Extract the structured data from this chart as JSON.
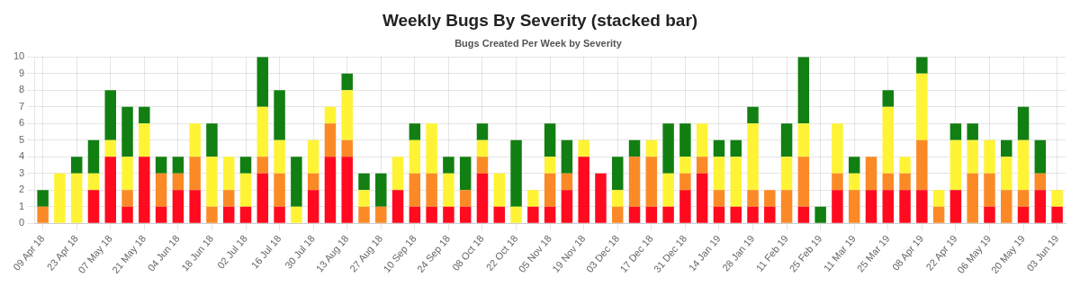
{
  "chart_data": {
    "type": "bar",
    "title": "Weekly Bugs By Severity (stacked bar)",
    "subtitle": "Bugs Created Per Week by Severity",
    "stacked": true,
    "grid": true,
    "legend": false,
    "categories": [
      "09 Apr 18",
      null,
      "23 Apr 18",
      null,
      "07 May 18",
      null,
      "21 May 18",
      null,
      "04 Jun 18",
      null,
      "18 Jun 18",
      null,
      "02 Jul 18",
      null,
      "16 Jul 18",
      null,
      "30 Jul 18",
      null,
      "13 Aug 18",
      null,
      "27 Aug 18",
      null,
      "10 Sep 18",
      null,
      "24 Sep 18",
      null,
      "08 Oct 18",
      null,
      "22 Oct 18",
      null,
      "05 Nov 18",
      null,
      "19 Nov 18",
      null,
      "03 Dec 18",
      null,
      "17 Dec 18",
      null,
      "31 Dec 18",
      null,
      "14 Jan 19",
      null,
      "28 Jan 19",
      null,
      "11 Feb 19",
      null,
      "25 Feb 19",
      null,
      "11 Mar 19",
      null,
      "25 Mar 19",
      null,
      "08 Apr 19",
      null,
      "22 Apr 19",
      null,
      "06 May 19",
      null,
      "20 May 19",
      null,
      "03 Jun 19"
    ],
    "ylim": [
      0,
      10
    ],
    "yticks": [
      0,
      1,
      2,
      3,
      4,
      5,
      6,
      7,
      8,
      9,
      10
    ],
    "series": [
      {
        "color": "#ff0a1f",
        "values": [
          0,
          0,
          0,
          2,
          4,
          1,
          4,
          1,
          2,
          2,
          0,
          1,
          1,
          3,
          1,
          0,
          2,
          4,
          4,
          0,
          0,
          2,
          1,
          1,
          1,
          1,
          3,
          1,
          0,
          1,
          1,
          2,
          4,
          3,
          0,
          1,
          1,
          1,
          2,
          3,
          1,
          1,
          1,
          1,
          0,
          1,
          0,
          2,
          0,
          2,
          2,
          2,
          2,
          0,
          2,
          0,
          1,
          0,
          1,
          2,
          1
        ]
      },
      {
        "color": "#fb8a26",
        "values": [
          1,
          0,
          0,
          0,
          0,
          1,
          0,
          2,
          1,
          2,
          1,
          1,
          0,
          1,
          2,
          0,
          1,
          2,
          1,
          1,
          1,
          0,
          2,
          2,
          0,
          1,
          1,
          0,
          0,
          0,
          2,
          1,
          0,
          0,
          1,
          3,
          3,
          0,
          1,
          1,
          1,
          0,
          1,
          1,
          2,
          3,
          0,
          1,
          2,
          2,
          1,
          1,
          3,
          1,
          0,
          3,
          2,
          2,
          1,
          1,
          0
        ]
      },
      {
        "color": "#fff335",
        "values": [
          0,
          3,
          3,
          1,
          1,
          2,
          2,
          0,
          0,
          2,
          3,
          2,
          2,
          3,
          2,
          1,
          2,
          1,
          3,
          1,
          0,
          2,
          2,
          3,
          2,
          0,
          1,
          2,
          1,
          1,
          1,
          0,
          1,
          0,
          1,
          0,
          1,
          2,
          1,
          2,
          2,
          3,
          4,
          0,
          2,
          2,
          0,
          3,
          1,
          0,
          4,
          1,
          4,
          1,
          3,
          2,
          2,
          2,
          3,
          0,
          1
        ]
      },
      {
        "color": "#127f12",
        "values": [
          1,
          0,
          1,
          2,
          3,
          3,
          1,
          1,
          1,
          0,
          2,
          0,
          1,
          3,
          3,
          3,
          0,
          0,
          1,
          1,
          2,
          0,
          1,
          0,
          1,
          2,
          1,
          0,
          4,
          0,
          2,
          2,
          0,
          0,
          2,
          1,
          0,
          3,
          2,
          0,
          1,
          1,
          1,
          0,
          2,
          4,
          1,
          0,
          1,
          0,
          1,
          0,
          1,
          0,
          1,
          1,
          0,
          1,
          2,
          2,
          0
        ]
      }
    ]
  }
}
